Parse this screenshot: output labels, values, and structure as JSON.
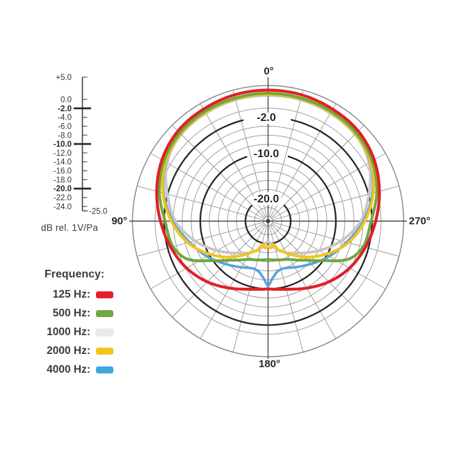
{
  "chart_data": {
    "type": "line",
    "polar": true,
    "title": "",
    "zero_angle_position": "top",
    "angle_direction": "counterclockwise",
    "angle_labels": [
      {
        "deg": 0,
        "label": "0°"
      },
      {
        "deg": 90,
        "label": "90°"
      },
      {
        "deg": 180,
        "label": "180°"
      },
      {
        "deg": 270,
        "label": "270°"
      }
    ],
    "radial_axis": {
      "unit": "dB rel. 1V/Pa",
      "outer_db": 5,
      "center_db": -25,
      "ring_step_db": 2,
      "first_ring_db": 0,
      "last_ring_db": -24,
      "spoke_step_deg": 15,
      "bold_rings": [
        {
          "db": -2,
          "label": "-2.0",
          "gap_half_deg": 13
        },
        {
          "db": -10,
          "label": "-10.0",
          "gap_half_deg": 17.5
        },
        {
          "db": -20,
          "label": "-20.0",
          "gap_half_deg": 46
        }
      ]
    },
    "scale_bar": {
      "caption": "dB rel. 1V/Pa",
      "min_label": "-25.0",
      "min_db": -25,
      "ticks": [
        {
          "label": "+5.0",
          "db": 5,
          "bold": false
        },
        {
          "label": "0.0",
          "db": 0,
          "bold": false
        },
        {
          "label": "-2.0",
          "db": -2,
          "bold": true
        },
        {
          "label": "-4.0",
          "db": -4,
          "bold": false
        },
        {
          "label": "-6.0",
          "db": -6,
          "bold": false
        },
        {
          "label": "-8.0",
          "db": -8,
          "bold": false
        },
        {
          "label": "-10.0",
          "db": -10,
          "bold": true
        },
        {
          "label": "-12.0",
          "db": -12,
          "bold": false
        },
        {
          "label": "-14.0",
          "db": -14,
          "bold": false
        },
        {
          "label": "-16.0",
          "db": -16,
          "bold": false
        },
        {
          "label": "-18.0",
          "db": -18,
          "bold": false
        },
        {
          "label": "-20.0",
          "db": -20,
          "bold": true
        },
        {
          "label": "-22.0",
          "db": -22,
          "bold": false
        },
        {
          "label": "-24.0",
          "db": -24,
          "bold": false
        }
      ]
    },
    "legend": {
      "title": "Frequency:",
      "items": [
        {
          "label": "125 Hz:",
          "swatch": "#e5202b"
        },
        {
          "label": "500 Hz:",
          "swatch": "#70a844"
        },
        {
          "label": "1000 Hz:",
          "swatch": "#e9e9e9"
        },
        {
          "label": "2000 Hz:",
          "swatch": "#f4c41c"
        },
        {
          "label": "4000 Hz:",
          "swatch": "#3fa7d9"
        }
      ]
    },
    "symmetry": "values given for 0-180 deg, mirrored about the 0-180 axis",
    "series": [
      {
        "name": "125 Hz",
        "color": "#df2127",
        "points_deg_db": [
          [
            0,
            4.0
          ],
          [
            15,
            3.9
          ],
          [
            30,
            3.6
          ],
          [
            45,
            3.2
          ],
          [
            60,
            2.1
          ],
          [
            75,
            0.5
          ],
          [
            90,
            -1.2
          ],
          [
            105,
            -2.7
          ],
          [
            120,
            -4.2
          ],
          [
            135,
            -6.0
          ],
          [
            150,
            -7.9
          ],
          [
            165,
            -9.4
          ],
          [
            180,
            -10.0
          ]
        ]
      },
      {
        "name": "500 Hz",
        "color": "#6fa63f",
        "points_deg_db": [
          [
            0,
            3.3
          ],
          [
            15,
            3.2
          ],
          [
            30,
            3.0
          ],
          [
            45,
            2.6
          ],
          [
            60,
            1.6
          ],
          [
            75,
            -0.1
          ],
          [
            90,
            -2.2
          ],
          [
            105,
            -3.2
          ],
          [
            115,
            -5.2
          ],
          [
            125,
            -9.8
          ],
          [
            135,
            -12.8
          ],
          [
            150,
            -15.2
          ],
          [
            165,
            -16.1
          ],
          [
            180,
            -16.5
          ]
        ]
      },
      {
        "name": "1000 Hz",
        "color": "#c7c7c7",
        "points_deg_db": [
          [
            0,
            2.9
          ],
          [
            15,
            2.85
          ],
          [
            30,
            2.65
          ],
          [
            45,
            2.3
          ],
          [
            60,
            0.8
          ],
          [
            75,
            -1.9
          ],
          [
            90,
            -4.5
          ],
          [
            105,
            -8.2
          ],
          [
            120,
            -12.0
          ],
          [
            135,
            -15.0
          ],
          [
            150,
            -16.9
          ],
          [
            160,
            -18.1
          ],
          [
            168,
            -19.2
          ],
          [
            180,
            -20.6
          ]
        ]
      },
      {
        "name": "2000 Hz",
        "color": "#f2c41f",
        "points_deg_db": [
          [
            0,
            3.0
          ],
          [
            15,
            2.95
          ],
          [
            30,
            2.7
          ],
          [
            45,
            2.3
          ],
          [
            60,
            1.2
          ],
          [
            75,
            -0.9
          ],
          [
            90,
            -3.6
          ],
          [
            105,
            -6.6
          ],
          [
            120,
            -10.3
          ],
          [
            135,
            -13.8
          ],
          [
            150,
            -16.8
          ],
          [
            160,
            -18.2
          ],
          [
            167,
            -19.8
          ],
          [
            174,
            -19.0
          ],
          [
            180,
            -19.4
          ]
        ]
      },
      {
        "name": "4000 Hz",
        "color": "#5ba3d9",
        "points_deg_db": [
          [
            0,
            2.9
          ],
          [
            15,
            2.85
          ],
          [
            30,
            2.6
          ],
          [
            45,
            2.2
          ],
          [
            60,
            1.1
          ],
          [
            75,
            -1.1
          ],
          [
            90,
            -3.9
          ],
          [
            105,
            -7.0
          ],
          [
            120,
            -9.4
          ],
          [
            135,
            -11.6
          ],
          [
            150,
            -13.2
          ],
          [
            162,
            -14.0
          ],
          [
            170,
            -13.6
          ],
          [
            176,
            -12.2
          ],
          [
            180,
            -10.6
          ]
        ]
      }
    ]
  }
}
